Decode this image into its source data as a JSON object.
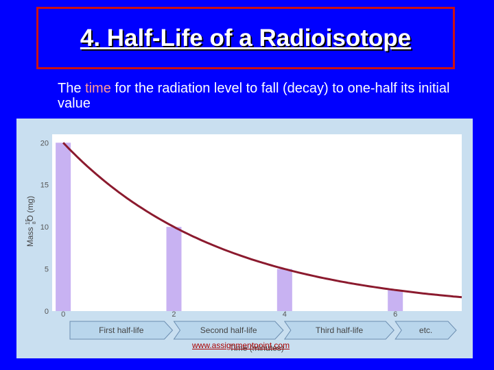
{
  "slide": {
    "title": "4. Half-Life of a Radioisotope",
    "desc_part1": "The ",
    "desc_highlight": "time",
    "desc_part2": " for the radiation level to fall (decay) to one-half its initial value",
    "watermark": "www.assignmentpoint.com"
  },
  "colors": {
    "background": "#0000ff",
    "title_border": "#cc1111",
    "highlight": "#ff9999",
    "chart_bg": "#c9dff0",
    "bar": "#c8b2f2",
    "curve": "#8b1a2e",
    "arrow": "#b9d6ec"
  },
  "chart_data": {
    "type": "bar",
    "x_values": [
      0,
      2,
      4,
      6
    ],
    "x_ticks": [
      "0",
      "2",
      "4",
      "6"
    ],
    "values": [
      20,
      10,
      5,
      2.5
    ],
    "y_ticks": [
      0,
      5,
      10,
      15,
      20
    ],
    "ylim": [
      0,
      21
    ],
    "xlim": [
      -0.2,
      7.2
    ],
    "ylabel_main": "Mass ",
    "ylabel_super": "15",
    "ylabel_sub": "8",
    "ylabel_rest": "O (mg)",
    "xlabel": "Time (minutes)",
    "curve": {
      "type": "exponential_decay",
      "initial": 20,
      "half_life": 2,
      "x_start": 0,
      "x_end": 7.2
    },
    "half_life_arrows": [
      "First half-life",
      "Second half-life",
      "Third half-life",
      "etc."
    ],
    "grid": false,
    "legend": "none"
  }
}
